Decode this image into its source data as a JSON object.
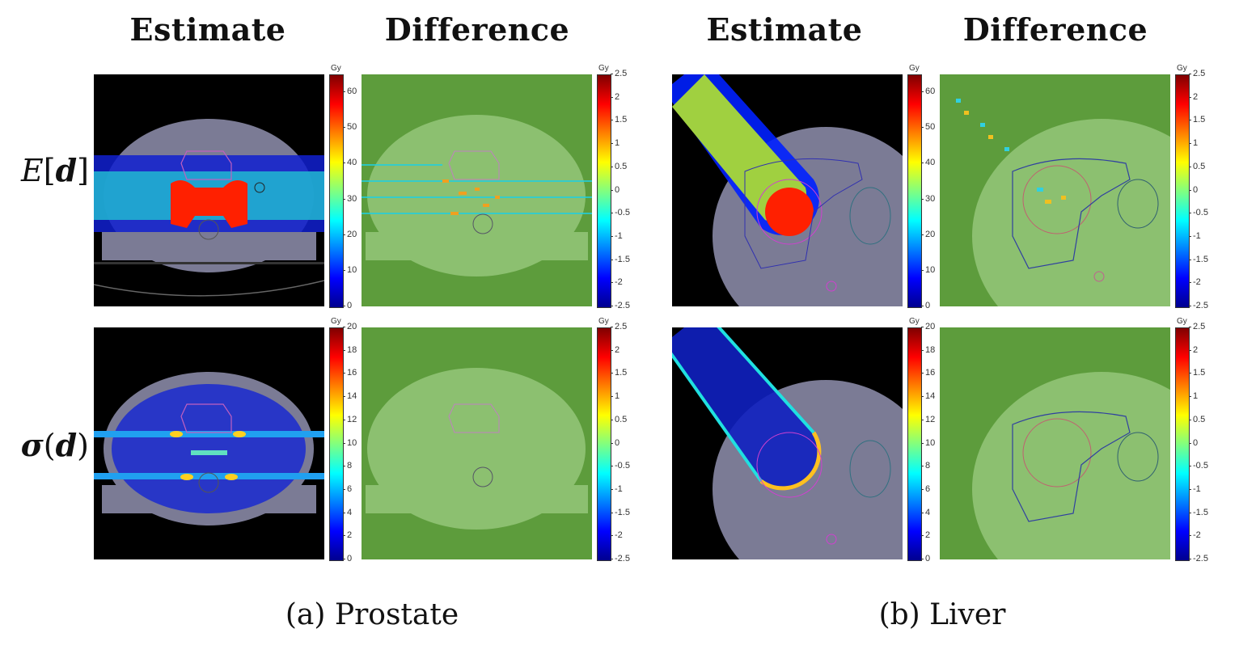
{
  "figure": {
    "columns": [
      {
        "title": "Estimate"
      },
      {
        "title": "Difference"
      },
      {
        "title": "Estimate"
      },
      {
        "title": "Difference"
      }
    ],
    "rows": [
      {
        "label_prefix": "E",
        "label_open": "[",
        "label_var": "d",
        "label_close": "]"
      },
      {
        "label_prefix": "σ",
        "label_open": "(",
        "label_var": "d",
        "label_close": ")"
      }
    ],
    "captions": [
      {
        "text": "(a) Prostate"
      },
      {
        "text": "(b) Liver"
      }
    ],
    "colorbars": {
      "unit": "Gy",
      "mean_dose": {
        "min": 0,
        "max": 65,
        "ticks": [
          "60",
          "50",
          "40",
          "30",
          "20",
          "10",
          "0"
        ],
        "tick_values": [
          60,
          50,
          40,
          30,
          20,
          10,
          0
        ]
      },
      "std_dose": {
        "min": 0,
        "max": 20,
        "ticks": [
          "20",
          "18",
          "16",
          "14",
          "12",
          "10",
          "8",
          "6",
          "4",
          "2",
          "0"
        ],
        "tick_values": [
          20,
          18,
          16,
          14,
          12,
          10,
          8,
          6,
          4,
          2,
          0
        ]
      },
      "difference": {
        "min": -2.5,
        "max": 2.5,
        "ticks": [
          "2.5",
          "2",
          "1.5",
          "1",
          "0.5",
          "0",
          "-0.5",
          "-1",
          "-1.5",
          "-2",
          "-2.5"
        ],
        "tick_values": [
          2.5,
          2,
          1.5,
          1,
          0.5,
          0,
          -0.5,
          -1,
          -1.5,
          -2,
          -2.5
        ]
      }
    },
    "panels": [
      {
        "case": "Prostate",
        "row": "E[d]",
        "column": "Estimate",
        "colorbar": "mean_dose"
      },
      {
        "case": "Prostate",
        "row": "E[d]",
        "column": "Difference",
        "colorbar": "difference"
      },
      {
        "case": "Liver",
        "row": "E[d]",
        "column": "Estimate",
        "colorbar": "mean_dose"
      },
      {
        "case": "Liver",
        "row": "E[d]",
        "column": "Difference",
        "colorbar": "difference"
      },
      {
        "case": "Prostate",
        "row": "σ(d)",
        "column": "Estimate",
        "colorbar": "std_dose"
      },
      {
        "case": "Prostate",
        "row": "σ(d)",
        "column": "Difference",
        "colorbar": "difference"
      },
      {
        "case": "Liver",
        "row": "σ(d)",
        "column": "Estimate",
        "colorbar": "std_dose"
      },
      {
        "case": "Liver",
        "row": "σ(d)",
        "column": "Difference",
        "colorbar": "difference"
      }
    ]
  }
}
